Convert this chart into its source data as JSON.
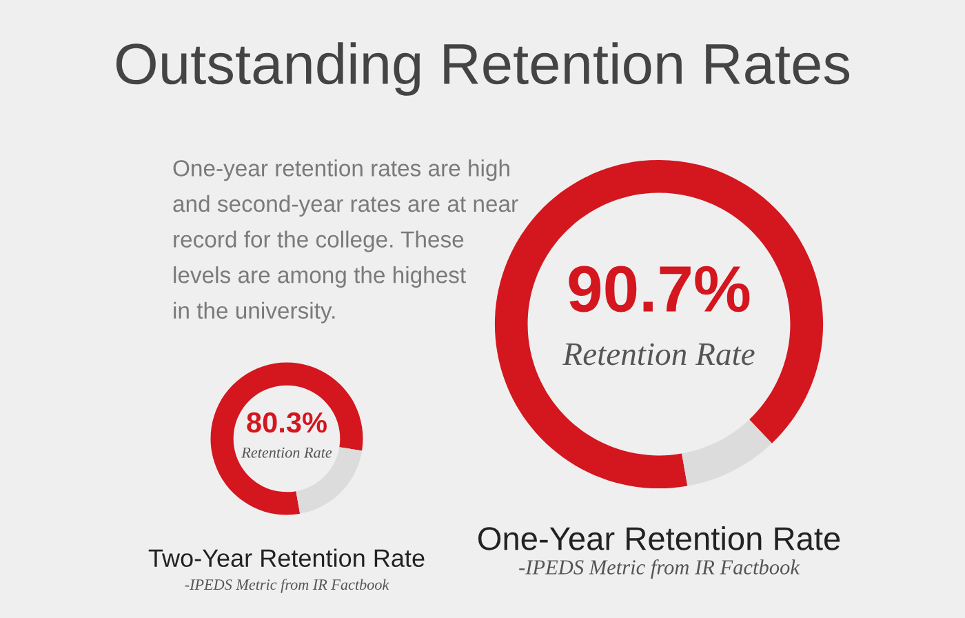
{
  "chart_data": [
    {
      "type": "other",
      "title": "Outstanding Retention Rates",
      "annotations": [
        "One-year retention rates are high\nand second-year rates are at near\nrecord for the college. These\nlevels are among the highest\nin the university."
      ]
    },
    {
      "type": "donut",
      "title": "One-Year Retention Rate",
      "categories": [
        null,
        null
      ],
      "values": [
        90.7,
        9.3
      ],
      "colors": [
        "#d4161f",
        "#dcdcdc"
      ],
      "value_labels": [
        "90.7%",
        null
      ],
      "annotations": [
        "Retention Rate",
        "-IPEDS Metric from IR Factbook"
      ]
    },
    {
      "type": "donut",
      "title": "Two-Year Retention Rate",
      "categories": [
        null,
        null
      ],
      "values": [
        80.3,
        19.7
      ],
      "colors": [
        "#d4161f",
        "#dcdcdc"
      ],
      "value_labels": [
        "80.3%",
        null
      ],
      "annotations": [
        "Retention Rate",
        "-IPEDS Metric from IR Factbook"
      ]
    }
  ]
}
